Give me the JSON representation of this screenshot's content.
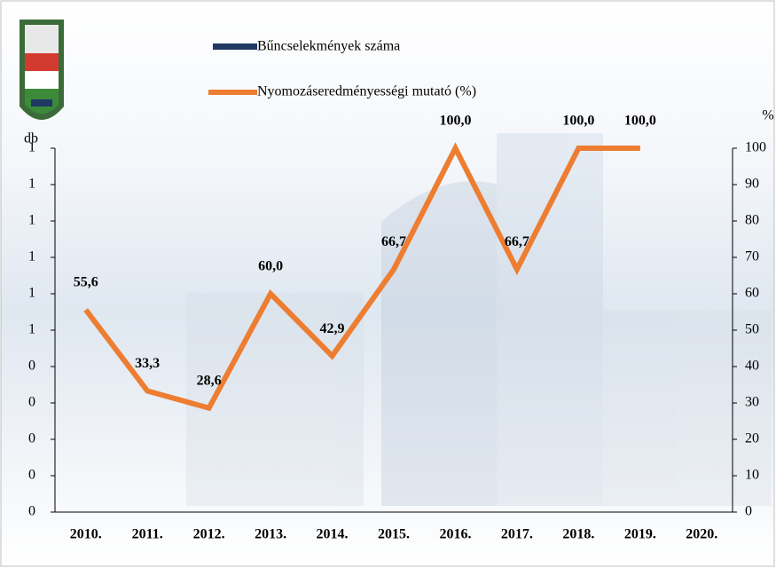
{
  "chart_data": {
    "type": "bar-line",
    "categories": [
      "2010.",
      "2011.",
      "2012.",
      "2013.",
      "2014.",
      "2015.",
      "2016.",
      "2017.",
      "2018.",
      "2019.",
      "2020."
    ],
    "ylabel": "db",
    "y2label": "%",
    "ylim": [
      0,
      1
    ],
    "yticks": [
      {
        "value": 0,
        "label": "0"
      },
      {
        "value": 0.1,
        "label": "0"
      },
      {
        "value": 0.2,
        "label": "0"
      },
      {
        "value": 0.3,
        "label": "0"
      },
      {
        "value": 0.4,
        "label": "0"
      },
      {
        "value": 0.5,
        "label": "1"
      },
      {
        "value": 0.6,
        "label": "1"
      },
      {
        "value": 0.7,
        "label": "1"
      },
      {
        "value": 0.8,
        "label": "1"
      },
      {
        "value": 0.9,
        "label": "1"
      },
      1
    ],
    "y2lim": [
      0,
      100
    ],
    "y2ticks": [
      0,
      10,
      20,
      30,
      40,
      50,
      60,
      70,
      80,
      90,
      100
    ],
    "series": [
      {
        "name": "Bűncselekmények száma",
        "type": "bar",
        "color": "#1f3864",
        "values": [
          0,
          0,
          0,
          0,
          0,
          0,
          0,
          0,
          0,
          0,
          0
        ]
      },
      {
        "name": "Nyomozáseredményességi mutató (%)",
        "type": "line",
        "axis": "y2",
        "color": "#ed7d31",
        "values": [
          55.6,
          33.3,
          28.6,
          60.0,
          42.9,
          66.7,
          100.0,
          66.7,
          100.0,
          100.0,
          null
        ],
        "value_labels": [
          "55,6",
          "33,3",
          "28,6",
          "60,0",
          "42,9",
          "66,7",
          "100,0",
          "66,7",
          "100,0",
          "100,0",
          null
        ]
      }
    ]
  }
}
